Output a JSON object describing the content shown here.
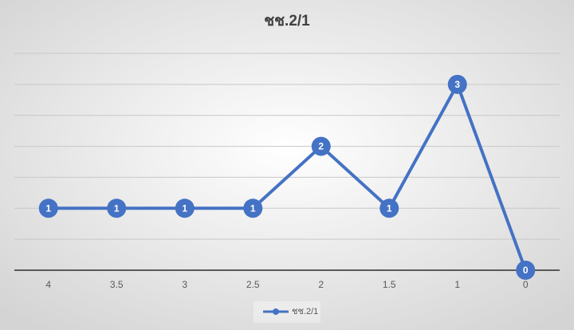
{
  "chart_data": {
    "type": "line",
    "title": "ชช.2/1",
    "categories": [
      "4",
      "3.5",
      "3",
      "2.5",
      "2",
      "1.5",
      "1",
      "0"
    ],
    "series": [
      {
        "name": "ชช.2/1",
        "color": "#4472c4",
        "values": [
          1,
          1,
          1,
          1,
          2,
          1,
          3,
          0
        ]
      }
    ],
    "ylim": [
      0,
      3.5
    ],
    "yticks": [
      0,
      0.5,
      1,
      1.5,
      2,
      2.5,
      3,
      3.5
    ],
    "grid": true,
    "legend": "bottom"
  }
}
